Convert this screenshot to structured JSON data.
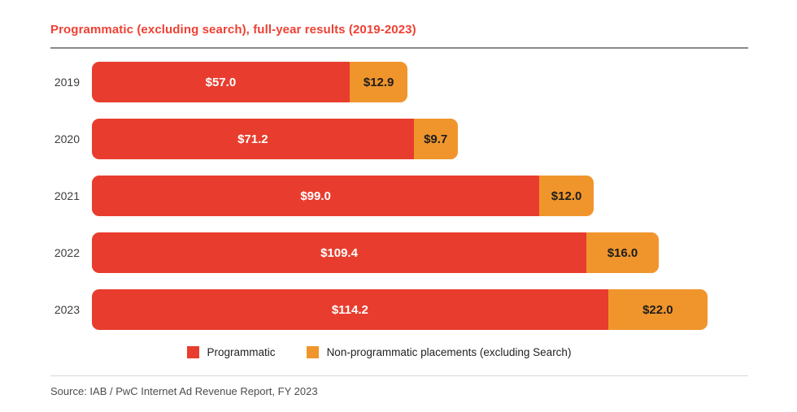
{
  "title": "Programmatic (excluding search), full-year results (2019-2023)",
  "source": "Source: IAB / PwC Internet Ad Revenue Report, FY 2023",
  "colors": {
    "title_red": "#ee4134",
    "programmatic_red": "#e83d2e",
    "non_programmatic_orange": "#f0952c",
    "title_rule_gray": "#8a8a8a",
    "bottom_rule_gray": "#d9d9d9"
  },
  "chart_data": {
    "type": "bar",
    "orientation": "horizontal",
    "stacked": true,
    "title": "Programmatic (excluding search), full-year results (2019-2023)",
    "categories": [
      "2019",
      "2020",
      "2021",
      "2022",
      "2023"
    ],
    "series": [
      {
        "name": "Programmatic",
        "color": "#e83d2e",
        "label_color": "#ffffff",
        "values": [
          57.0,
          71.2,
          99.0,
          109.4,
          114.2
        ],
        "labels": [
          "$57.0",
          "$71.2",
          "$99.0",
          "$109.4",
          "$114.2"
        ]
      },
      {
        "name": "Non-programmatic placements (excluding Search)",
        "color": "#f0952c",
        "label_color": "#1d1d1d",
        "values": [
          12.9,
          9.7,
          12.0,
          16.0,
          22.0
        ],
        "labels": [
          "$12.9",
          "$9.7",
          "$12.0",
          "$16.0",
          "$22.0"
        ]
      }
    ],
    "xmax": 136.2,
    "unit": "USD billions",
    "grid": false,
    "legend_position": "bottom",
    "source": "Source: IAB / PwC Internet Ad Revenue Report, FY 2023"
  }
}
